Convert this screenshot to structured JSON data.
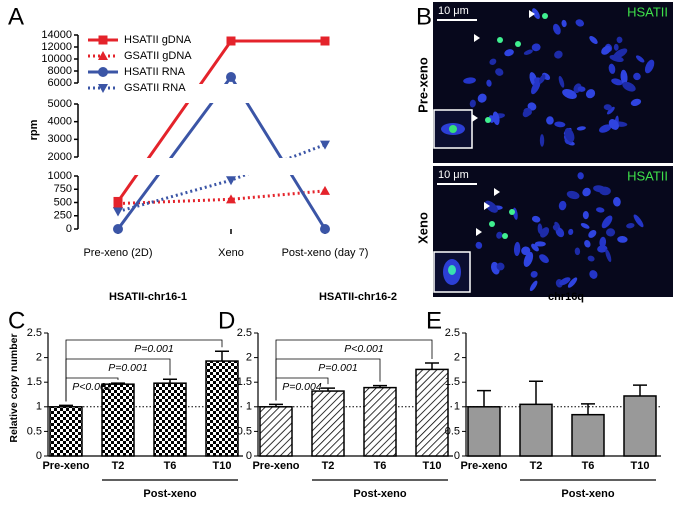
{
  "chart_data": [
    {
      "type": "line",
      "panel_label": "A",
      "y_label": "rpm",
      "categories": [
        "Pre-xeno (2D)",
        "Xeno",
        "Post-xeno (day 7)"
      ],
      "series": [
        {
          "name": "HSATII gDNA",
          "color": "#e4232b",
          "line_style": "solid",
          "marker": "square",
          "values": [
            520,
            13000,
            13000
          ]
        },
        {
          "name": "GSATII gDNA",
          "color": "#e4232b",
          "line_style": "dotted",
          "marker": "triangle-up",
          "values": [
            480,
            560,
            720
          ]
        },
        {
          "name": "HSATII RNA",
          "color": "#3b55a6",
          "line_style": "solid",
          "marker": "circle",
          "values": [
            0,
            7000,
            0
          ]
        },
        {
          "name": "GSATII RNA",
          "color": "#3b55a6",
          "line_style": "dotted",
          "marker": "triangle-down",
          "values": [
            330,
            920,
            2700
          ]
        }
      ],
      "ylim": [
        0,
        14000
      ],
      "axis_breaks": [
        [
          1000,
          2000
        ],
        [
          5000,
          6000
        ]
      ],
      "yticks": [
        0,
        250,
        500,
        750,
        1000,
        2000,
        3000,
        4000,
        5000,
        6000,
        8000,
        10000,
        12000,
        14000
      ],
      "legend": "upper-left"
    },
    {
      "type": "bar",
      "panel_label": "C",
      "title": "HSATII-chr16-1",
      "y_label": "Relative copy number",
      "group_label": "Post-xeno",
      "categories": [
        "Pre-xeno",
        "T2",
        "T6",
        "T10"
      ],
      "values": [
        1,
        1.46,
        1.48,
        1.93
      ],
      "errors": [
        0.03,
        0.02,
        0.08,
        0.2
      ],
      "comparison_labels": [
        null,
        "P<0.001",
        "P=0.001",
        "P=0.001"
      ],
      "fill_pattern": "checker",
      "color": "#000000",
      "reference_line": 1,
      "ylim": [
        0,
        2.5
      ],
      "yticks": [
        0,
        0.5,
        1,
        1.5,
        2,
        2.5
      ]
    },
    {
      "type": "bar",
      "panel_label": "D",
      "title": "HSATII-chr16-2",
      "group_label": "Post-xeno",
      "categories": [
        "Pre-xeno",
        "T2",
        "T6",
        "T10"
      ],
      "values": [
        1,
        1.32,
        1.39,
        1.76
      ],
      "errors": [
        0.05,
        0.06,
        0.04,
        0.13
      ],
      "comparison_labels": [
        null,
        "P=0.004",
        "P=0.001",
        "P<0.001"
      ],
      "fill_pattern": "hatch",
      "color": "#000000",
      "reference_line": 1,
      "ylim": [
        0,
        2.5
      ],
      "yticks": [
        0,
        0.5,
        1,
        1.5,
        2,
        2.5
      ]
    },
    {
      "type": "bar",
      "panel_label": "E",
      "title": "chr16q",
      "group_label": "Post-xeno",
      "categories": [
        "Pre-xeno",
        "T2",
        "T6",
        "T10"
      ],
      "values": [
        1,
        1.05,
        0.84,
        1.22
      ],
      "errors": [
        0.33,
        0.47,
        0.22,
        0.22
      ],
      "color": "#999999",
      "reference_line": 1,
      "ylim": [
        0,
        2.5
      ],
      "yticks": [
        0,
        0.5,
        1,
        1.5,
        2,
        2.5
      ]
    }
  ],
  "image_panel": {
    "panel_label": "B",
    "images": [
      {
        "row_label": "Pre-xeno",
        "scale_bar": "10 μm",
        "channel": "HSATII"
      },
      {
        "row_label": "Xeno",
        "scale_bar": "10 μm",
        "channel": "HSATII"
      }
    ]
  }
}
